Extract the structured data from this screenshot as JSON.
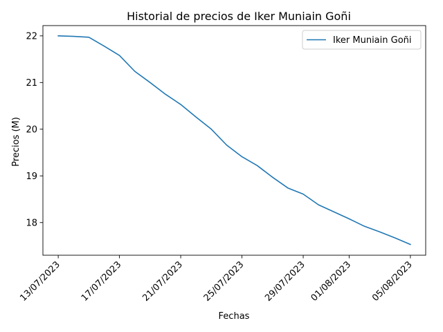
{
  "chart_data": {
    "type": "line",
    "title": "Historial de precios de Iker Muniain Goñi",
    "xlabel": "Fechas",
    "ylabel": "Precios (M)",
    "x_ticks": [
      "13/07/2023",
      "17/07/2023",
      "21/07/2023",
      "25/07/2023",
      "29/07/2023",
      "01/08/2023",
      "05/08/2023"
    ],
    "y_ticks": [
      "18",
      "19",
      "20",
      "21",
      "22"
    ],
    "ylim": [
      17.3,
      22.22
    ],
    "xlim": [
      "2023-07-12",
      "2023-08-06"
    ],
    "grid": false,
    "legend_position": "top-right",
    "series": [
      {
        "name": "Iker Muniain Goñi",
        "color": "#1f77b4",
        "x": [
          "2023-07-13",
          "2023-07-14",
          "2023-07-15",
          "2023-07-16",
          "2023-07-17",
          "2023-07-18",
          "2023-07-19",
          "2023-07-20",
          "2023-07-21",
          "2023-07-22",
          "2023-07-23",
          "2023-07-24",
          "2023-07-25",
          "2023-07-26",
          "2023-07-27",
          "2023-07-28",
          "2023-07-29",
          "2023-07-30",
          "2023-07-31",
          "2023-08-01",
          "2023-08-02",
          "2023-08-03",
          "2023-08-04",
          "2023-08-05"
        ],
        "values": [
          22.0,
          21.99,
          21.97,
          21.78,
          21.58,
          21.24,
          21.0,
          20.75,
          20.53,
          20.26,
          20.0,
          19.66,
          19.41,
          19.22,
          18.97,
          18.74,
          18.61,
          18.38,
          18.23,
          18.08,
          17.92,
          17.8,
          17.67,
          17.53
        ]
      }
    ]
  }
}
